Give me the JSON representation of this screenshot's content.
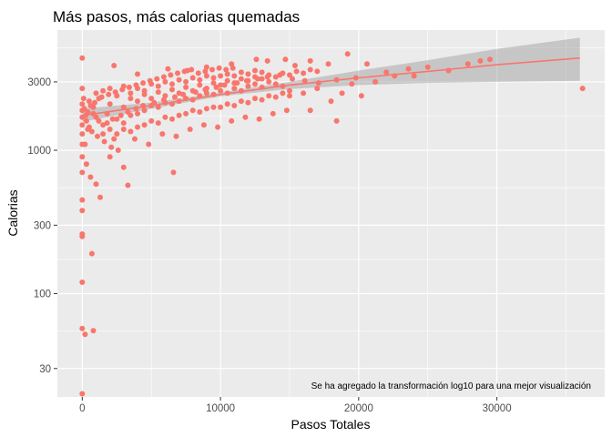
{
  "chart_data": {
    "type": "scatter",
    "title": "Más pasos, más calorias quemadas",
    "xlabel": "Pasos Totales",
    "ylabel": "Calorias",
    "y_scale": "log10",
    "xlim": [
      -1800,
      37800
    ],
    "ylim": [
      19,
      6900
    ],
    "x_ticks": [
      0,
      10000,
      20000,
      30000
    ],
    "x_tick_labels": [
      "0",
      "10000",
      "20000",
      "30000"
    ],
    "y_ticks": [
      30,
      100,
      300,
      1000,
      3000
    ],
    "y_tick_labels": [
      "30",
      "100",
      "300",
      "1000",
      "3000"
    ],
    "grid": true,
    "point_color": "#F8766D",
    "fit_line_color": "#F8766D",
    "band_color": "#999999",
    "panel_color": "#EBEBEB",
    "annotation": "Se ha agregado la transformación log10 para una mejor visualización",
    "trend": {
      "x": [
        0,
        5000,
        10000,
        15000,
        20000,
        25000,
        30000,
        36000
      ],
      "y": [
        1750,
        2050,
        2450,
        2850,
        3200,
        3550,
        3950,
        4400
      ],
      "lower": [
        1580,
        1950,
        2380,
        2680,
        2850,
        2950,
        3000,
        3050
      ],
      "upper": [
        1950,
        2150,
        2530,
        3000,
        3600,
        4250,
        5100,
        6100
      ]
    },
    "points": [
      [
        0,
        4400
      ],
      [
        0,
        2700
      ],
      [
        0,
        2100
      ],
      [
        0,
        1900
      ],
      [
        0,
        1700
      ],
      [
        0,
        1500
      ],
      [
        0,
        1300
      ],
      [
        0,
        1100
      ],
      [
        0,
        900
      ],
      [
        0,
        700
      ],
      [
        0,
        450
      ],
      [
        0,
        380
      ],
      [
        0,
        260
      ],
      [
        0,
        250
      ],
      [
        0,
        120
      ],
      [
        0,
        57
      ],
      [
        0,
        20
      ],
      [
        200,
        52
      ],
      [
        800,
        55
      ],
      [
        700,
        190
      ],
      [
        300,
        800
      ],
      [
        600,
        650
      ],
      [
        1000,
        580
      ],
      [
        1300,
        470
      ],
      [
        200,
        1100
      ],
      [
        400,
        1400
      ],
      [
        800,
        1800
      ],
      [
        1500,
        1300
      ],
      [
        2000,
        900
      ],
      [
        2300,
        1200
      ],
      [
        3300,
        570
      ],
      [
        3000,
        760
      ],
      [
        6600,
        700
      ],
      [
        2300,
        3900
      ],
      [
        4000,
        3400
      ],
      [
        6200,
        3700
      ],
      [
        7600,
        3600
      ],
      [
        9000,
        3800
      ],
      [
        10800,
        4000
      ],
      [
        12600,
        4300
      ],
      [
        13400,
        4200
      ],
      [
        14700,
        4300
      ],
      [
        15400,
        3900
      ],
      [
        16500,
        4200
      ],
      [
        17800,
        4000
      ],
      [
        19200,
        4700
      ],
      [
        20600,
        4000
      ],
      [
        22000,
        3500
      ],
      [
        23600,
        3700
      ],
      [
        25000,
        3800
      ],
      [
        26500,
        3600
      ],
      [
        27900,
        4000
      ],
      [
        28800,
        4200
      ],
      [
        29500,
        4300
      ],
      [
        36200,
        2700
      ],
      [
        18400,
        3100
      ],
      [
        19800,
        3200
      ],
      [
        21200,
        3000
      ],
      [
        22600,
        3300
      ],
      [
        24000,
        3300
      ],
      [
        17000,
        2700
      ],
      [
        15000,
        2600
      ],
      [
        16000,
        2500
      ],
      [
        19500,
        2900
      ],
      [
        18000,
        2200
      ],
      [
        20200,
        2400
      ],
      [
        18800,
        2500
      ],
      [
        18400,
        1600
      ],
      [
        16500,
        1900
      ],
      [
        500,
        2200
      ],
      [
        800,
        2000
      ],
      [
        1200,
        2300
      ],
      [
        1800,
        1800
      ],
      [
        2500,
        1650
      ],
      [
        3000,
        1550
      ],
      [
        3500,
        1750
      ],
      [
        4000,
        1800
      ],
      [
        4500,
        1900
      ],
      [
        5000,
        2050
      ],
      [
        5500,
        2000
      ],
      [
        6000,
        2150
      ],
      [
        6500,
        2100
      ],
      [
        7000,
        2200
      ],
      [
        7500,
        2300
      ],
      [
        8000,
        2250
      ],
      [
        8500,
        2400
      ],
      [
        9000,
        2500
      ],
      [
        9500,
        2450
      ],
      [
        10000,
        2600
      ],
      [
        10500,
        2500
      ],
      [
        11000,
        2700
      ],
      [
        11500,
        2600
      ],
      [
        12000,
        2800
      ],
      [
        12500,
        2900
      ],
      [
        13000,
        2750
      ],
      [
        13500,
        3000
      ],
      [
        14000,
        2900
      ],
      [
        14500,
        2800
      ],
      [
        1000,
        2500
      ],
      [
        1500,
        2600
      ],
      [
        2000,
        2700
      ],
      [
        2500,
        2400
      ],
      [
        3000,
        2800
      ],
      [
        3500,
        2500
      ],
      [
        4000,
        2700
      ],
      [
        4500,
        2600
      ],
      [
        5000,
        2900
      ],
      [
        5500,
        2800
      ],
      [
        6000,
        3000
      ],
      [
        6500,
        2900
      ],
      [
        7000,
        3100
      ],
      [
        7500,
        3000
      ],
      [
        8000,
        3200
      ],
      [
        8500,
        3100
      ],
      [
        9000,
        3300
      ],
      [
        9500,
        3200
      ],
      [
        10000,
        3300
      ],
      [
        10500,
        3400
      ],
      [
        11000,
        3300
      ],
      [
        11500,
        3500
      ],
      [
        12000,
        3400
      ],
      [
        12500,
        3600
      ],
      [
        13000,
        3500
      ],
      [
        1500,
        1500
      ],
      [
        2000,
        1400
      ],
      [
        2500,
        1300
      ],
      [
        3000,
        1400
      ],
      [
        3500,
        1350
      ],
      [
        4000,
        1450
      ],
      [
        4500,
        1500
      ],
      [
        5000,
        1600
      ],
      [
        5500,
        1550
      ],
      [
        6000,
        1700
      ],
      [
        6500,
        1650
      ],
      [
        7000,
        1750
      ],
      [
        7500,
        1800
      ],
      [
        8000,
        1900
      ],
      [
        8500,
        1850
      ],
      [
        9000,
        1950
      ],
      [
        9500,
        2000
      ],
      [
        10000,
        2000
      ],
      [
        10500,
        2100
      ],
      [
        11000,
        2050
      ],
      [
        11500,
        2200
      ],
      [
        12000,
        2150
      ],
      [
        12500,
        2300
      ],
      [
        13000,
        2250
      ],
      [
        13500,
        2400
      ],
      [
        14000,
        2350
      ],
      [
        14500,
        2500
      ],
      [
        15000,
        2400
      ],
      [
        3800,
        1200
      ],
      [
        4800,
        1100
      ],
      [
        5800,
        1300
      ],
      [
        6800,
        1250
      ],
      [
        7800,
        1400
      ],
      [
        8800,
        1500
      ],
      [
        9800,
        1450
      ],
      [
        10800,
        1600
      ],
      [
        11800,
        1700
      ],
      [
        12800,
        1650
      ],
      [
        13800,
        1800
      ],
      [
        14800,
        1900
      ],
      [
        3000,
        2000
      ],
      [
        4000,
        2200
      ],
      [
        5000,
        2300
      ],
      [
        6000,
        2400
      ],
      [
        7000,
        2500
      ],
      [
        8000,
        2600
      ],
      [
        9000,
        2700
      ],
      [
        10000,
        2850
      ],
      [
        11000,
        2950
      ],
      [
        12000,
        3050
      ],
      [
        13000,
        3150
      ],
      [
        14000,
        3250
      ],
      [
        15000,
        3350
      ],
      [
        16000,
        3450
      ],
      [
        17000,
        3550
      ],
      [
        2000,
        2100
      ],
      [
        3500,
        2300
      ],
      [
        4500,
        2450
      ],
      [
        5500,
        2550
      ],
      [
        6500,
        2650
      ],
      [
        7500,
        2750
      ],
      [
        8500,
        2850
      ],
      [
        9500,
        2950
      ],
      [
        10500,
        3050
      ],
      [
        11500,
        3150
      ],
      [
        12500,
        3250
      ],
      [
        13500,
        3350
      ],
      [
        14500,
        3450
      ],
      [
        15500,
        3550
      ],
      [
        16500,
        3650
      ],
      [
        1000,
        1700
      ],
      [
        1200,
        1600
      ],
      [
        1800,
        1550
      ],
      [
        2200,
        1650
      ],
      [
        2800,
        1750
      ],
      [
        3300,
        1850
      ],
      [
        3900,
        1950
      ],
      [
        4400,
        2050
      ],
      [
        5200,
        2150
      ],
      [
        5900,
        2250
      ],
      [
        6700,
        2350
      ],
      [
        7300,
        2450
      ],
      [
        8200,
        2550
      ],
      [
        8900,
        2650
      ],
      [
        9700,
        2750
      ],
      [
        10300,
        2850
      ],
      [
        11200,
        2950
      ],
      [
        11900,
        3050
      ],
      [
        12700,
        3150
      ],
      [
        13400,
        3250
      ],
      [
        14300,
        3350
      ],
      [
        15200,
        3150
      ],
      [
        16100,
        3050
      ],
      [
        17100,
        2950
      ],
      [
        300,
        1600
      ],
      [
        500,
        1450
      ],
      [
        700,
        1350
      ],
      [
        1100,
        1250
      ],
      [
        1600,
        1150
      ],
      [
        2100,
        1050
      ],
      [
        2600,
        1000
      ],
      [
        100,
        2300
      ],
      [
        150,
        1950
      ],
      [
        250,
        1750
      ],
      [
        400,
        1850
      ],
      [
        600,
        2050
      ],
      [
        900,
        2150
      ],
      [
        1400,
        2350
      ],
      [
        1900,
        2450
      ],
      [
        2400,
        2550
      ],
      [
        2900,
        2650
      ],
      [
        3400,
        2750
      ],
      [
        3900,
        2850
      ],
      [
        4400,
        2950
      ],
      [
        4900,
        3050
      ],
      [
        5400,
        3150
      ],
      [
        5900,
        3250
      ],
      [
        6400,
        3350
      ],
      [
        6900,
        3450
      ],
      [
        7400,
        3550
      ],
      [
        7900,
        3650
      ],
      [
        8400,
        3450
      ],
      [
        8900,
        3550
      ],
      [
        9400,
        3650
      ],
      [
        9900,
        3750
      ],
      [
        10400,
        3650
      ],
      [
        10900,
        3750
      ]
    ]
  }
}
